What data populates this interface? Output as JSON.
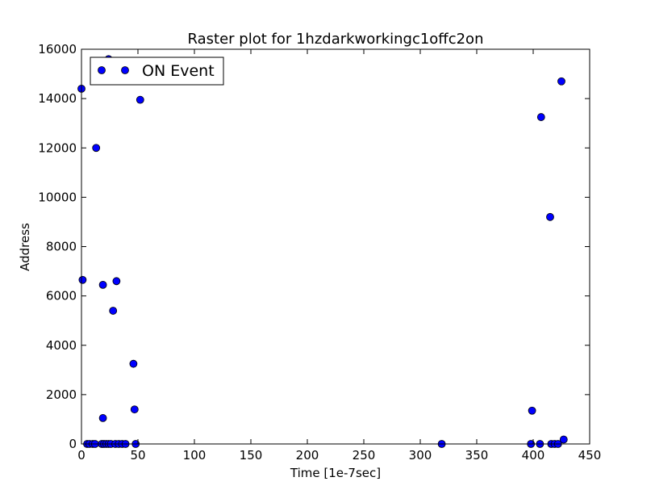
{
  "chart_data": {
    "type": "scatter",
    "title": "Raster plot for 1hzdarkworkingc1offc2on",
    "xlabel": "Time [1e-7sec]",
    "ylabel": "Address",
    "xlim": [
      0,
      450
    ],
    "ylim": [
      0,
      16000
    ],
    "xticks": [
      0,
      50,
      100,
      150,
      200,
      250,
      300,
      350,
      400,
      450
    ],
    "yticks": [
      0,
      2000,
      4000,
      6000,
      8000,
      10000,
      12000,
      14000,
      16000
    ],
    "grid": false,
    "legend": {
      "position": "top-left",
      "entries": [
        "ON Event"
      ]
    },
    "colors": {
      "marker": "#0000ff",
      "marker_edge": "#000000"
    },
    "series": [
      {
        "name": "ON Event",
        "x": [
          0,
          1,
          5,
          7,
          10,
          12,
          13,
          18,
          19,
          19,
          20,
          22,
          24,
          24,
          26,
          28,
          30,
          31,
          33,
          36,
          39,
          46,
          47,
          48,
          52,
          319,
          398,
          399,
          406,
          407,
          415,
          416,
          419,
          422,
          425,
          427
        ],
        "y": [
          14400,
          6650,
          0,
          0,
          0,
          0,
          12000,
          0,
          6450,
          1050,
          0,
          0,
          15600,
          0,
          0,
          5400,
          0,
          6600,
          0,
          0,
          0,
          3250,
          1400,
          0,
          13950,
          0,
          0,
          1350,
          0,
          13250,
          9200,
          0,
          0,
          0,
          14700,
          180
        ]
      }
    ]
  }
}
